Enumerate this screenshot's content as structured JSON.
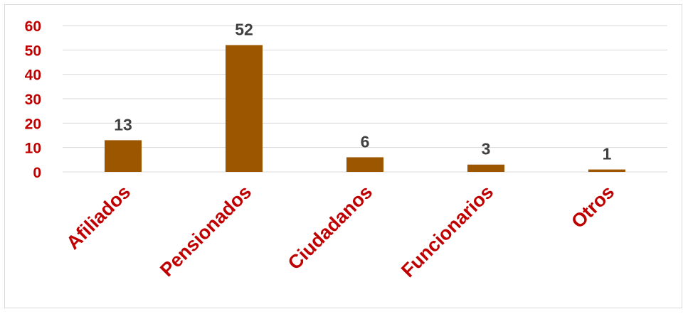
{
  "chart_data": {
    "type": "bar",
    "title": "",
    "xlabel": "",
    "ylabel": "",
    "categories": [
      "Afiliados",
      "Pensionados",
      "Ciudadanos",
      "Funcionarios",
      "Otros"
    ],
    "values": [
      13,
      52,
      6,
      3,
      1
    ],
    "data_labels": [
      "13",
      "52",
      "6",
      "3",
      "1"
    ],
    "y_ticks": [
      "0",
      "10",
      "20",
      "30",
      "40",
      "50",
      "60"
    ],
    "ylim": [
      0,
      60
    ],
    "grid": true,
    "legend": "none",
    "colors": {
      "bar": "#9C5600",
      "tick_label": "#C00000",
      "data_label": "#404040",
      "grid": "#d9d9d9"
    }
  }
}
